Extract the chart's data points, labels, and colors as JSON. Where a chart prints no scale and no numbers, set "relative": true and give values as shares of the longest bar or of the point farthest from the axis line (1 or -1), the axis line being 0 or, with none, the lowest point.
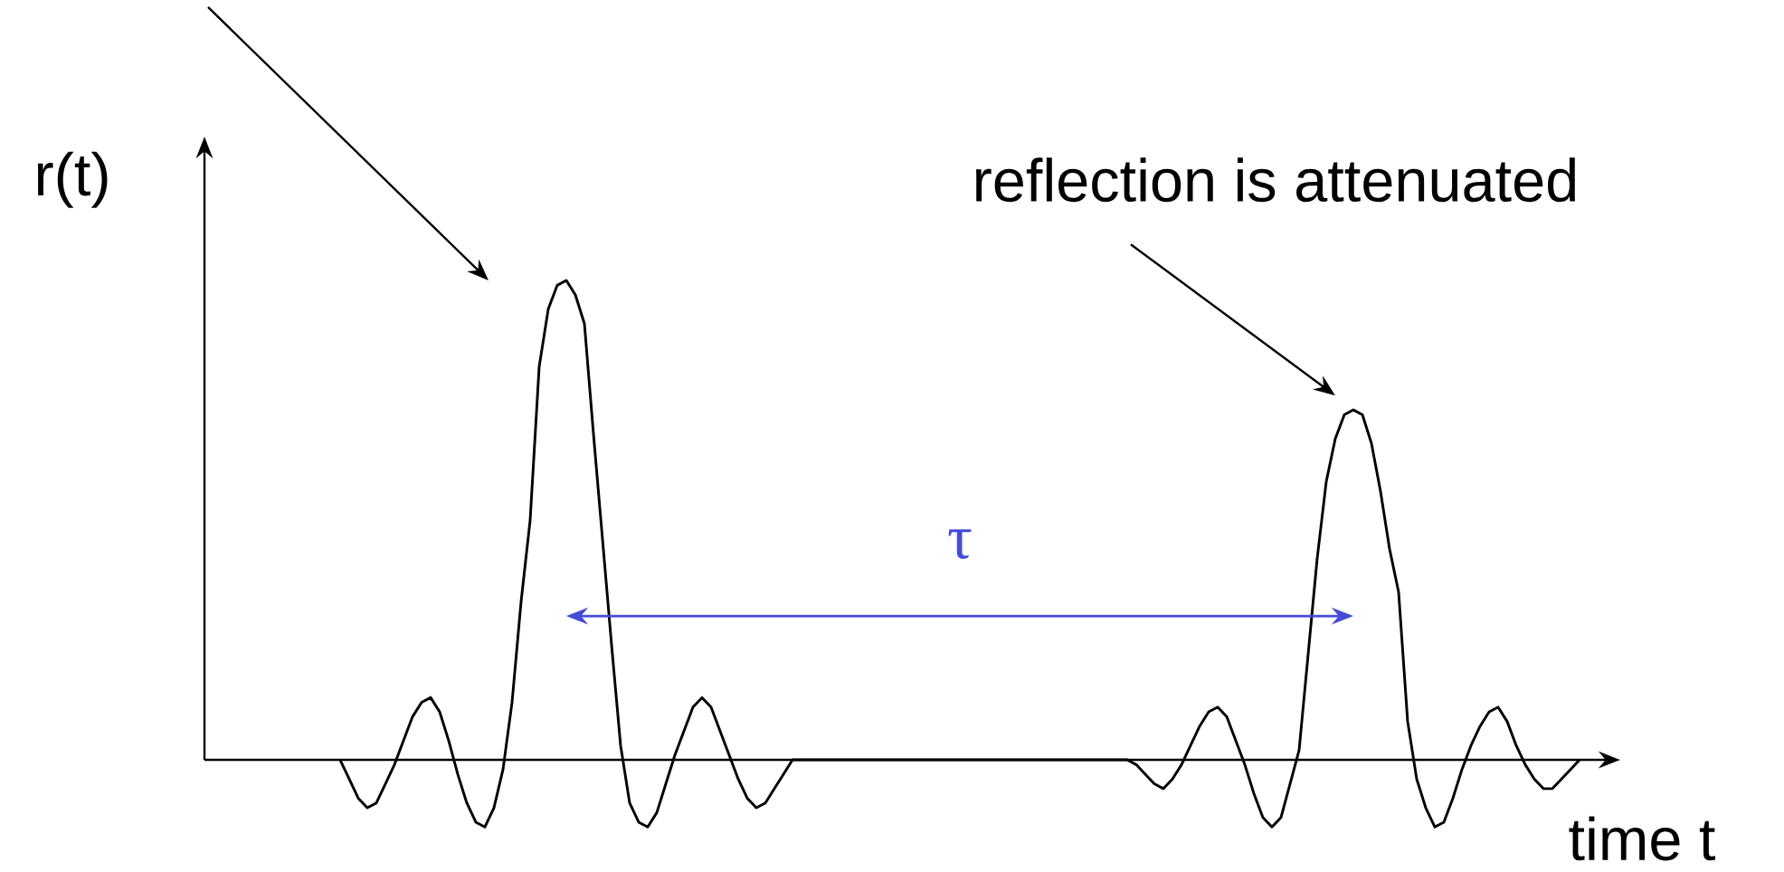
{
  "chart_data": {
    "type": "line",
    "relative": true,
    "xlabel": "time t",
    "ylabel": "r(t)",
    "marker": "none",
    "color": "#000000",
    "annotations": [
      "reflection is attenuated",
      "τ"
    ],
    "categories": [
      null,
      null,
      null,
      null,
      null,
      null,
      null,
      null,
      null,
      null,
      null,
      null,
      null,
      null,
      null,
      null,
      null,
      null,
      null,
      null,
      null,
      null,
      null,
      null,
      null,
      null,
      null,
      null,
      null,
      null,
      null,
      null,
      null,
      null,
      null,
      null,
      null,
      null,
      null,
      null,
      null,
      null,
      null,
      null,
      null,
      null,
      null,
      null,
      null,
      null,
      null,
      null,
      null,
      null,
      null,
      null,
      null,
      null,
      null,
      null,
      null,
      null,
      null,
      null,
      null,
      null,
      null,
      null,
      null,
      null,
      null,
      null,
      null,
      null,
      null,
      null,
      null,
      null,
      null,
      null,
      null,
      null,
      null,
      null,
      null,
      null,
      null,
      null,
      null,
      null,
      null,
      null,
      null,
      null,
      null,
      null,
      null,
      null,
      null,
      null,
      null,
      null,
      null,
      null,
      null,
      null,
      null,
      null,
      null,
      null,
      null,
      null,
      null,
      null,
      null,
      null,
      null,
      null,
      null,
      null,
      null,
      null,
      null,
      null,
      null,
      null,
      null,
      null,
      null,
      null,
      null,
      null,
      null,
      null,
      null,
      null,
      null,
      null,
      null,
      null,
      null,
      null,
      null,
      null,
      null,
      null,
      null,
      null,
      null,
      null,
      null,
      null,
      null,
      null,
      null,
      null,
      null
    ],
    "values": [
      null,
      null,
      null,
      null,
      null,
      null,
      null,
      null,
      null,
      null,
      null,
      null,
      null,
      null,
      null,
      0.0,
      -0.04,
      -0.08,
      -0.1,
      -0.09,
      -0.05,
      -0.01,
      0.04,
      0.09,
      0.12,
      0.13,
      0.1,
      0.04,
      -0.03,
      -0.09,
      -0.13,
      -0.14,
      -0.1,
      -0.02,
      0.12,
      0.33,
      0.5,
      0.82,
      0.94,
      0.99,
      1.0,
      0.97,
      0.91,
      0.68,
      0.46,
      0.24,
      0.03,
      -0.09,
      -0.13,
      -0.14,
      -0.11,
      -0.05,
      0.01,
      0.06,
      0.11,
      0.13,
      0.11,
      0.06,
      0.01,
      -0.04,
      -0.08,
      -0.1,
      -0.09,
      -0.06,
      -0.03,
      0.0,
      0.0,
      0.0,
      0.0,
      0.0,
      0.0,
      0.0,
      0.0,
      0.0,
      0.0,
      0.0,
      0.0,
      0.0,
      0.0,
      0.0,
      0.0,
      0.0,
      0.0,
      0.0,
      0.0,
      0.0,
      0.0,
      0.0,
      0.0,
      0.0,
      0.0,
      0.0,
      0.0,
      0.0,
      0.0,
      0.0,
      0.0,
      0.0,
      0.0,
      0.0,
      0.0,
      0.0,
      0.0,
      -0.01,
      -0.03,
      -0.05,
      -0.06,
      -0.04,
      -0.01,
      0.03,
      0.07,
      0.1,
      0.11,
      0.09,
      0.04,
      -0.01,
      -0.07,
      -0.12,
      -0.14,
      -0.12,
      -0.05,
      0.02,
      0.22,
      0.42,
      0.58,
      0.67,
      0.72,
      0.73,
      0.72,
      0.66,
      0.56,
      0.44,
      0.35,
      0.08,
      -0.04,
      -0.1,
      -0.14,
      -0.13,
      -0.08,
      -0.02,
      0.03,
      0.07,
      0.1,
      0.11,
      0.08,
      0.03,
      -0.01,
      -0.04,
      -0.06,
      -0.06,
      -0.04,
      -0.02,
      0.0,
      null,
      null,
      null,
      null
    ]
  }
}
